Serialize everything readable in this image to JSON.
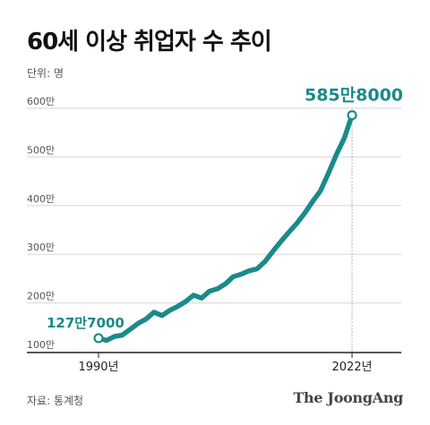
{
  "header": {
    "title": "60세 이상 취업자 수 추이",
    "unit": "단위: 명"
  },
  "footer": {
    "source": "자료: 통계청",
    "brand": "The JoongAng"
  },
  "colors": {
    "line": "#1a8a8a",
    "label": "#1a8a8a",
    "grid": "#d6d6d6",
    "axis": "#222222",
    "text": "#555555"
  },
  "chart_data": {
    "type": "line",
    "title": "60세 이상 취업자 수 추이",
    "ylabel": "",
    "xlabel": "",
    "ylim": [
      100,
      600
    ],
    "xlim": [
      1990,
      2024
    ],
    "yticks": [
      100,
      200,
      300,
      400,
      500,
      600
    ],
    "ytick_labels": [
      "100만",
      "200만",
      "300만",
      "400만",
      "500만",
      "600만"
    ],
    "xtick_labels": [
      {
        "x": 1990,
        "label": "1990년"
      },
      {
        "x": 2022,
        "label": "2022년"
      }
    ],
    "grid": true,
    "series": [
      {
        "x": [
          1990,
          1991,
          1992,
          1993,
          1994,
          1995,
          1996,
          1997,
          1998,
          1999,
          2000,
          2001,
          2002,
          2003,
          2004,
          2005,
          2006,
          2007,
          2008,
          2009,
          2010,
          2011,
          2012,
          2013,
          2014,
          2015,
          2016,
          2017,
          2018,
          2019,
          2020,
          2021,
          2022
        ],
        "y": [
          127.7,
          123,
          131,
          134,
          146,
          158,
          167,
          181,
          174,
          185,
          193,
          203,
          216,
          210,
          224,
          229,
          239,
          254,
          259,
          266,
          270,
          285,
          306,
          326,
          345,
          363,
          384,
          408,
          430,
          466,
          504,
          538,
          585.8
        ]
      }
    ],
    "annotations": [
      {
        "x": 1990,
        "y": 127.7,
        "text": "127만7000"
      },
      {
        "x": 2022,
        "y": 585.8,
        "text": "585만8000"
      }
    ]
  }
}
